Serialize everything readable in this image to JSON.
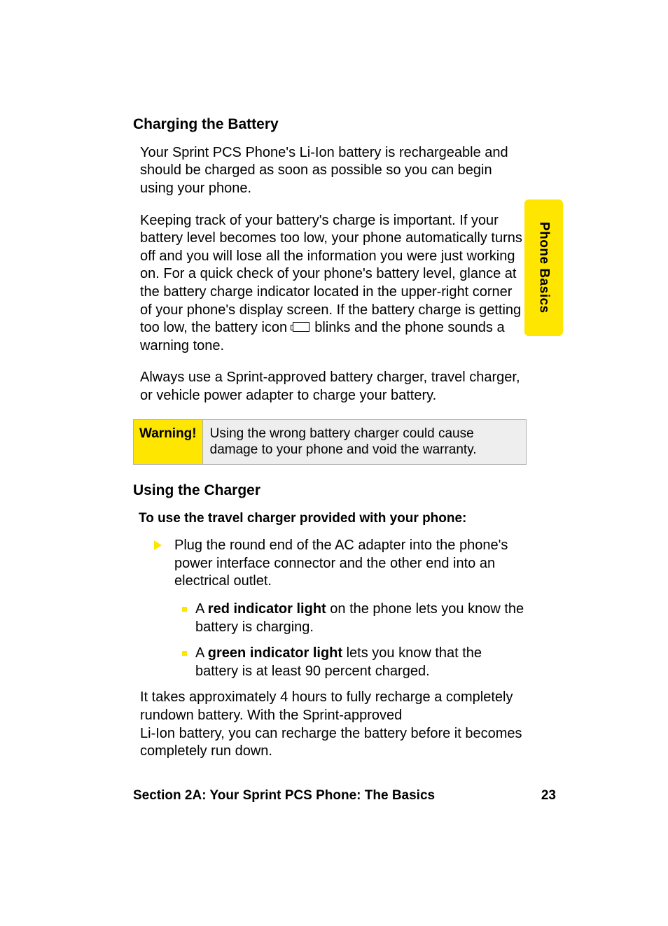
{
  "colors": {
    "accent": "#ffe600",
    "text": "#000000",
    "box_bg": "#eeeeee",
    "box_border": "#b0b0b0",
    "page_bg": "#ffffff"
  },
  "typography": {
    "body_fontsize": 20,
    "heading_fontsize": 21,
    "footer_fontsize": 19,
    "warning_fontsize": 19,
    "font_family": "sans-serif"
  },
  "side_tab": {
    "label": "Phone Basics"
  },
  "sections": {
    "charging": {
      "heading": "Charging the Battery",
      "p1": "Your Sprint PCS Phone's Li-Ion battery is rechargeable and should be charged as soon as possible so you can begin using your phone.",
      "p2a": "Keeping track of your battery's charge is important. If your battery level becomes too low, your phone automatically turns off and you will lose all the information you were just working on. For a quick check of your phone's battery level, glance at the battery charge indicator located in the upper-right corner of your phone's display screen. If the battery charge is getting too low, the battery icon ",
      "p2b": " blinks and the phone sounds a warning tone.",
      "p3": "Always use a Sprint-approved battery charger, travel charger, or vehicle power adapter to charge your battery."
    },
    "warning": {
      "label": "Warning!",
      "text": "Using the wrong battery charger could cause damage to your phone and void the warranty."
    },
    "using": {
      "heading": "Using the Charger",
      "lead": "To use the travel charger provided with your phone:",
      "step1": "Plug the round end of the AC adapter into the phone's power interface connector and the other end into an electrical outlet.",
      "sub1_pre": "A ",
      "sub1_bold": "red indicator light",
      "sub1_post": " on the phone lets you know the battery is charging.",
      "sub2_pre": "A ",
      "sub2_bold": "green indicator light",
      "sub2_post": " lets you know that the battery is at least 90 percent charged.",
      "p_after": "It takes approximately 4 hours to fully recharge a completely rundown battery. With the Sprint-approved\nLi-Ion battery, you can recharge the battery before it becomes completely run down."
    }
  },
  "footer": {
    "section": "Section 2A: Your Sprint PCS Phone: The Basics",
    "page": "23"
  }
}
